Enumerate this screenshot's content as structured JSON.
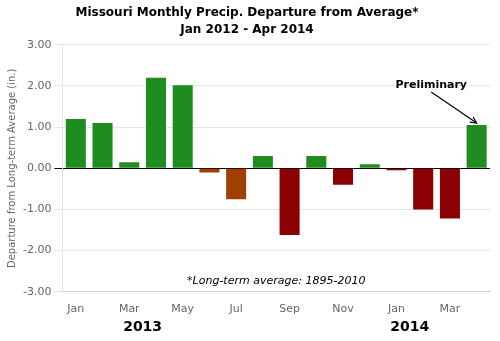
{
  "chart_data": {
    "type": "bar",
    "title": "Missouri Monthly Precip. Departure from Average*",
    "subtitle": "Jan 2012 - Apr 2014",
    "ylabel": "Departure from Long-term Average (in.)",
    "categories": [
      "Jan",
      null,
      "Mar",
      null,
      "May",
      null,
      "Jul",
      null,
      "Sep",
      null,
      "Nov",
      null,
      "Jan",
      null,
      "Mar",
      null
    ],
    "values": [
      1.2,
      1.1,
      0.15,
      2.2,
      2.02,
      -0.1,
      -0.75,
      0.3,
      -1.62,
      0.3,
      -0.4,
      0.1,
      -0.05,
      -1.0,
      -1.22,
      1.05
    ],
    "colors": [
      "#1e8c1e",
      "#1e8c1e",
      "#1e8c1e",
      "#1e8c1e",
      "#1e8c1e",
      "#a04000",
      "#a04000",
      "#1e8c1e",
      "#8b0000",
      "#1e8c1e",
      "#8b0000",
      "#1e8c1e",
      "#8b0000",
      "#8b0000",
      "#8b0000",
      "#1e8c1e"
    ],
    "ylim": [
      -3.0,
      3.0
    ],
    "yticks": [
      {
        "value": -3.0,
        "label": "-3.00"
      },
      {
        "value": -2.0,
        "label": "-2.00"
      },
      {
        "value": -1.0,
        "label": "-1.00"
      },
      {
        "value": 0.0,
        "label": "0.00"
      },
      {
        "value": 1.0,
        "label": "1.00"
      },
      {
        "value": 2.0,
        "label": "2.00"
      },
      {
        "value": 3.0,
        "label": "3.00"
      }
    ],
    "grid": true,
    "annotations": [
      "*Long-term average: 1895-2010",
      "Preliminary",
      "2013",
      "2014"
    ]
  }
}
